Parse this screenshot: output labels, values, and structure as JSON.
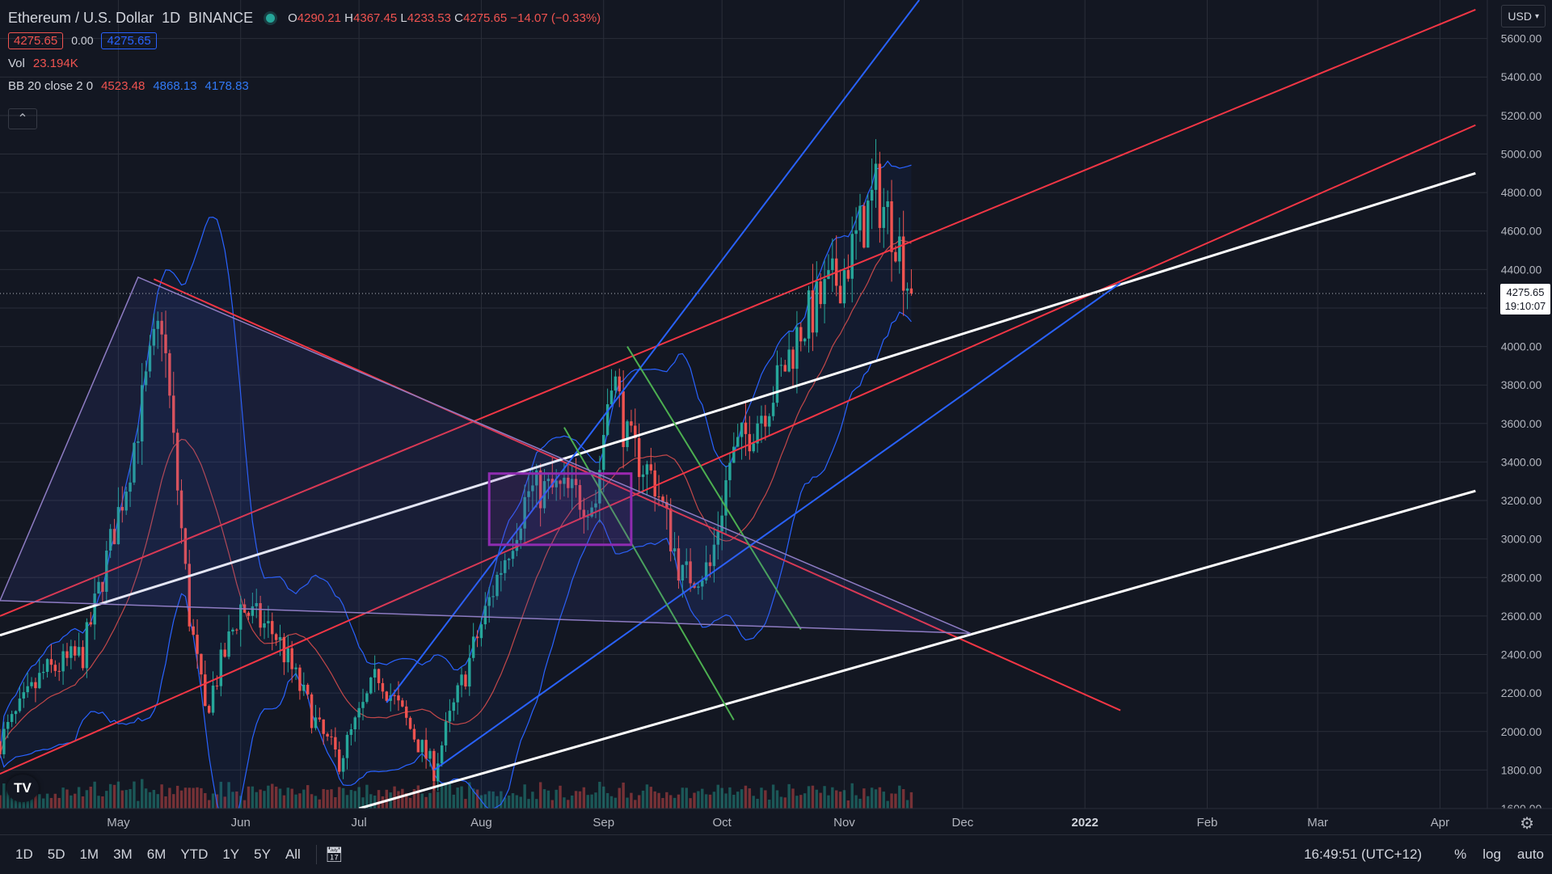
{
  "legend": {
    "symbol": "Ethereum / U.S. Dollar",
    "interval": "1D",
    "exchange": "BINANCE",
    "open_label": "O",
    "open": "4290.21",
    "high_label": "H",
    "high": "4367.45",
    "low_label": "L",
    "low": "4233.53",
    "close_label": "C",
    "close": "4275.65",
    "change": "−14.07 (−0.33%)",
    "bid": "4275.65",
    "spread": "0.00",
    "ask": "4275.65",
    "vol_label": "Vol",
    "vol_value": "23.194K",
    "bb_label": "BB 20 close 2 0",
    "bb_basis": "4523.48",
    "bb_upper": "4868.13",
    "bb_lower": "4178.83",
    "collapse_icon": "chevron-up-icon"
  },
  "currency_button": "USD",
  "last_price_tag": {
    "price": "4275.65",
    "countdown": "19:10:07"
  },
  "bottom_bar": {
    "ranges": [
      "1D",
      "5D",
      "1M",
      "3M",
      "6M",
      "YTD",
      "1Y",
      "5Y",
      "All"
    ],
    "compare_icon": "calendar-range-icon",
    "clock": "16:49:51 (UTC+12)",
    "percent": "%",
    "log": "log",
    "auto": "auto"
  },
  "settings_icon": "gear-icon",
  "colors": {
    "up": "#26a69a",
    "down": "#ef5350",
    "bb": "#2962ff",
    "basis": "#ef5350",
    "trend_red": "#f23645",
    "trend_blue": "#2962ff",
    "trend_white": "#ffffff",
    "trend_green": "#4caf50",
    "box_purple": "#9c27b0"
  },
  "chart_data": {
    "type": "candlestick",
    "time_axis": [
      "May",
      "Jun",
      "Jul",
      "Aug",
      "Sep",
      "Oct",
      "Nov",
      "Dec",
      "2022",
      "Feb",
      "Mar",
      "Apr"
    ],
    "price_axis": [
      "5600.00",
      "5400.00",
      "5200.00",
      "5000.00",
      "4800.00",
      "4600.00",
      "4400.00",
      "4200.00",
      "4000.00",
      "3800.00",
      "3600.00",
      "3400.00",
      "3200.00",
      "3000.00",
      "2800.00",
      "2600.00",
      "2400.00",
      "2200.00",
      "2000.00",
      "1800.00",
      "1600.00"
    ],
    "ylim": [
      1600,
      5800
    ],
    "grid": true,
    "close_anchors": [
      [
        "2021-04-01",
        1950
      ],
      [
        "2021-04-12",
        2300
      ],
      [
        "2021-04-22",
        2400
      ],
      [
        "2021-05-03",
        3300
      ],
      [
        "2021-05-09",
        3900
      ],
      [
        "2021-05-12",
        4150
      ],
      [
        "2021-05-19",
        2600
      ],
      [
        "2021-05-23",
        2100
      ],
      [
        "2021-06-01",
        2650
      ],
      [
        "2021-06-10",
        2500
      ],
      [
        "2021-06-21",
        2000
      ],
      [
        "2021-06-26",
        1850
      ],
      [
        "2021-07-06",
        2300
      ],
      [
        "2021-07-20",
        1800
      ],
      [
        "2021-07-23",
        2000
      ],
      [
        "2021-08-05",
        2800
      ],
      [
        "2021-08-13",
        3250
      ],
      [
        "2021-08-20",
        3250
      ],
      [
        "2021-08-30",
        3200
      ],
      [
        "2021-09-03",
        3900
      ],
      [
        "2021-09-07",
        3500
      ],
      [
        "2021-09-14",
        3300
      ],
      [
        "2021-09-21",
        2800
      ],
      [
        "2021-09-28",
        2850
      ],
      [
        "2021-10-03",
        3400
      ],
      [
        "2021-10-15",
        3800
      ],
      [
        "2021-10-21",
        4100
      ],
      [
        "2021-11-01",
        4400
      ],
      [
        "2021-11-09",
        4800
      ],
      [
        "2021-11-14",
        4600
      ],
      [
        "2021-11-17",
        4350
      ],
      [
        "2021-11-18",
        4275.65
      ]
    ],
    "bollinger_bands": {
      "length": 20,
      "source": "close",
      "mult": 2,
      "offset": 0,
      "basis": 4523.48,
      "upper": 4868.13,
      "lower": 4178.83
    },
    "volume": {
      "last": "23.194K"
    },
    "last": {
      "price": 4275.65
    },
    "drawings": [
      {
        "type": "trend_line",
        "color": "red",
        "from": [
          "2021-04-01",
          2600
        ],
        "to": [
          "2022-04-10",
          5750
        ]
      },
      {
        "type": "trend_line",
        "color": "red",
        "from": [
          "2021-04-01",
          1780
        ],
        "to": [
          "2022-04-10",
          5150
        ]
      },
      {
        "type": "trend_line",
        "color": "red",
        "from": [
          "2021-05-10",
          4350
        ],
        "to": [
          "2022-01-10",
          2110
        ]
      },
      {
        "type": "trend_line",
        "color": "white",
        "from": [
          "2021-04-01",
          2500
        ],
        "to": [
          "2022-04-10",
          4900
        ]
      },
      {
        "type": "trend_line",
        "color": "white",
        "from": [
          "2021-07-01",
          1600
        ],
        "to": [
          "2022-04-10",
          3250
        ]
      },
      {
        "type": "trend_line",
        "color": "blue",
        "from": [
          "2021-07-08",
          2150
        ],
        "to": [
          "2021-11-20",
          5800
        ]
      },
      {
        "type": "trend_line",
        "color": "blue",
        "from": [
          "2021-07-20",
          1800
        ],
        "to": [
          "2022-01-10",
          4330
        ]
      },
      {
        "type": "trend_line",
        "color": "green",
        "from": [
          "2021-08-22",
          3580
        ],
        "to": [
          "2021-10-04",
          2060
        ]
      },
      {
        "type": "trend_line",
        "color": "green",
        "from": [
          "2021-09-07",
          4000
        ],
        "to": [
          "2021-10-21",
          2530
        ]
      },
      {
        "type": "rectangle",
        "color": "purple",
        "from": [
          "2021-08-03",
          3340
        ],
        "to": [
          "2021-09-08",
          2970
        ]
      },
      {
        "type": "triangle",
        "color": "purple",
        "points": [
          [
            "2021-04-01",
            2680
          ],
          [
            "2021-05-06",
            4360
          ],
          [
            "2021-12-03",
            2510
          ]
        ]
      }
    ]
  }
}
